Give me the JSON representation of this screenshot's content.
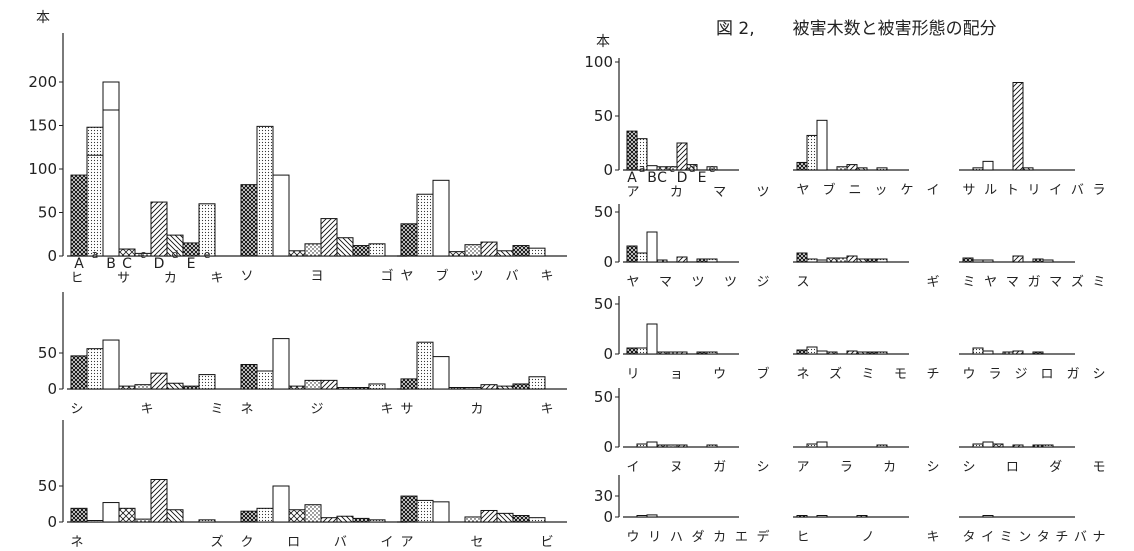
{
  "figure": {
    "number": "図 2,",
    "caption": "被害木数と被害形態の配分"
  },
  "unit_label": "本",
  "category_letters": [
    "A",
    "a",
    "B",
    "C",
    "c",
    "D",
    "d",
    "E",
    "e"
  ],
  "chart_data": [
    {
      "type": "bar",
      "title": "ヒ サ カ キ",
      "title_chars": [
        "ヒ",
        "サ",
        "カ",
        "キ"
      ],
      "categories": [
        "A",
        "a",
        "B",
        "C",
        "c",
        "D",
        "d",
        "E",
        "e"
      ],
      "values": [
        93,
        148,
        200,
        8,
        3,
        62,
        24,
        15,
        60
      ],
      "truncated": [
        false,
        true,
        true,
        false,
        false,
        false,
        false,
        false,
        false
      ],
      "ylim": [
        0,
        200
      ],
      "yticks": [
        0,
        50,
        100,
        150,
        200
      ],
      "grid": false
    },
    {
      "type": "bar",
      "title": "ソ ヨ ゴ",
      "title_chars": [
        "ソ",
        "ヨ",
        "ゴ"
      ],
      "categories": [
        "A",
        "a",
        "B",
        "C",
        "c",
        "D",
        "d",
        "E",
        "e"
      ],
      "values": [
        82,
        149,
        93,
        6,
        14,
        43,
        21,
        12,
        14
      ],
      "ylim": [
        0,
        200
      ],
      "grid": false
    },
    {
      "type": "bar",
      "title": "ヤ ブ ツ バ キ",
      "title_chars": [
        "ヤ",
        "ブ",
        "ツ",
        "バ",
        "キ"
      ],
      "categories": [
        "A",
        "a",
        "B",
        "C",
        "c",
        "D",
        "d",
        "E",
        "e"
      ],
      "values": [
        37,
        71,
        87,
        5,
        13,
        16,
        6,
        12,
        9
      ],
      "ylim": [
        0,
        200
      ],
      "grid": false
    },
    {
      "type": "bar",
      "title": "シ キ ミ",
      "title_chars": [
        "シ",
        "キ",
        "ミ"
      ],
      "categories": [
        "A",
        "a",
        "B",
        "C",
        "c",
        "D",
        "d",
        "E",
        "e"
      ],
      "values": [
        46,
        56,
        68,
        4,
        6,
        22,
        8,
        4,
        20
      ],
      "ylim": [
        0,
        75
      ],
      "yticks": [
        0,
        50
      ],
      "grid": false
    },
    {
      "type": "bar",
      "title": "ネ ジ キ",
      "title_chars": [
        "ネ",
        "ジ",
        "キ"
      ],
      "categories": [
        "A",
        "a",
        "B",
        "C",
        "c",
        "D",
        "d",
        "E",
        "e"
      ],
      "values": [
        34,
        25,
        70,
        4,
        12,
        12,
        2,
        2,
        7
      ],
      "ylim": [
        0,
        75
      ],
      "grid": false
    },
    {
      "type": "bar",
      "title": "サ カ キ",
      "title_chars": [
        "サ",
        "カ",
        "キ"
      ],
      "categories": [
        "A",
        "a",
        "B",
        "C",
        "c",
        "D",
        "d",
        "E",
        "e"
      ],
      "values": [
        14,
        65,
        45,
        2,
        2,
        6,
        4,
        7,
        17
      ],
      "ylim": [
        0,
        75
      ],
      "grid": false
    },
    {
      "type": "bar",
      "title": "ネ ズ",
      "title_chars": [
        "ネ",
        "",
        "",
        "ズ"
      ],
      "categories": [
        "A",
        "a",
        "B",
        "C",
        "c",
        "D",
        "d",
        "E",
        "e"
      ],
      "values": [
        19,
        2,
        27,
        19,
        4,
        59,
        17,
        0,
        3
      ],
      "ylim": [
        0,
        75
      ],
      "yticks": [
        0,
        50
      ],
      "grid": false
    },
    {
      "type": "bar",
      "title": "ク ロ バ イ",
      "title_chars": [
        "ク",
        "ロ",
        "バ",
        "イ"
      ],
      "categories": [
        "A",
        "a",
        "B",
        "C",
        "c",
        "D",
        "d",
        "E",
        "e"
      ],
      "values": [
        15,
        19,
        50,
        17,
        24,
        6,
        8,
        5,
        3
      ],
      "ylim": [
        0,
        75
      ],
      "grid": false
    },
    {
      "type": "bar",
      "title": "ア セ ビ",
      "title_chars": [
        "ア",
        "セ",
        "ビ"
      ],
      "categories": [
        "A",
        "a",
        "B",
        "C",
        "c",
        "D",
        "d",
        "E",
        "e"
      ],
      "values": [
        36,
        30,
        28,
        0,
        7,
        16,
        12,
        9,
        6
      ],
      "ylim": [
        0,
        75
      ],
      "grid": false
    },
    {
      "type": "bar",
      "title": "ア カ マ ツ",
      "title_chars": [
        "ア",
        "カ",
        "マ",
        "ツ"
      ],
      "categories": [
        "A",
        "a",
        "B",
        "C",
        "c",
        "D",
        "d",
        "E",
        "e"
      ],
      "values": [
        36,
        29,
        4,
        3,
        3,
        25,
        5,
        0,
        3
      ],
      "ylim": [
        0,
        100
      ],
      "yticks": [
        0,
        50,
        100
      ],
      "grid": false
    },
    {
      "type": "bar",
      "title": "ヤ ブ ニ ッ ケ イ",
      "title_chars": [
        "ヤ",
        "ブ",
        "ニ",
        "ッ",
        "ケ",
        "イ"
      ],
      "categories": [
        "A",
        "a",
        "B",
        "C",
        "c",
        "D",
        "d",
        "E",
        "e"
      ],
      "values": [
        7,
        32,
        46,
        0,
        3,
        5,
        2,
        0,
        2
      ],
      "ylim": [
        0,
        100
      ],
      "grid": false
    },
    {
      "type": "bar",
      "title": "サ ル ト リ イ バ ラ",
      "title_chars": [
        "サ",
        "ル",
        "ト",
        "リ",
        "イ",
        "バ",
        "ラ"
      ],
      "categories": [
        "A",
        "a",
        "B",
        "C",
        "c",
        "D",
        "d",
        "E",
        "e"
      ],
      "values": [
        0,
        2,
        8,
        0,
        0,
        81,
        2,
        0,
        0
      ],
      "ylim": [
        0,
        100
      ],
      "grid": false
    },
    {
      "type": "bar",
      "title": "ヤ マ ツ ツ ジ",
      "title_chars": [
        "ヤ",
        "マ",
        "ツ",
        "ツ",
        "ジ"
      ],
      "categories": [
        "A",
        "a",
        "B",
        "C",
        "c",
        "D",
        "d",
        "E",
        "e"
      ],
      "values": [
        16,
        9,
        30,
        2,
        0,
        5,
        0,
        3,
        3
      ],
      "ylim": [
        0,
        50
      ],
      "yticks": [
        0,
        50
      ],
      "grid": false
    },
    {
      "type": "bar",
      "title": "ス ギ",
      "title_chars": [
        "ス",
        "",
        "",
        "ギ"
      ],
      "categories": [
        "A",
        "a",
        "B",
        "C",
        "c",
        "D",
        "d",
        "E",
        "e"
      ],
      "values": [
        9,
        3,
        2,
        4,
        4,
        6,
        3,
        3,
        3
      ],
      "ylim": [
        0,
        50
      ],
      "grid": false
    },
    {
      "type": "bar",
      "title": "ミ ヤ マ ガ マ ズ ミ",
      "title_chars": [
        "ミ",
        "ヤ",
        "マ",
        "ガ",
        "マ",
        "ズ",
        "ミ"
      ],
      "categories": [
        "A",
        "a",
        "B",
        "C",
        "c",
        "D",
        "d",
        "E",
        "e"
      ],
      "values": [
        4,
        2,
        2,
        0,
        0,
        6,
        0,
        3,
        2
      ],
      "ylim": [
        0,
        50
      ],
      "grid": false
    },
    {
      "type": "bar",
      "title": "リ ョ ウ ブ",
      "title_chars": [
        "リ",
        "ョ",
        "ウ",
        "ブ"
      ],
      "categories": [
        "A",
        "a",
        "B",
        "C",
        "c",
        "D",
        "d",
        "E",
        "e"
      ],
      "values": [
        6,
        6,
        30,
        2,
        2,
        2,
        0,
        2,
        2
      ],
      "ylim": [
        0,
        50
      ],
      "yticks": [
        0,
        50
      ],
      "grid": false
    },
    {
      "type": "bar",
      "title": "ネ ズ ミ モ チ",
      "title_chars": [
        "ネ",
        "ズ",
        "ミ",
        "モ",
        "チ"
      ],
      "categories": [
        "A",
        "a",
        "B",
        "C",
        "c",
        "D",
        "d",
        "E",
        "e"
      ],
      "values": [
        4,
        7,
        3,
        2,
        0,
        3,
        2,
        2,
        2
      ],
      "ylim": [
        0,
        50
      ],
      "grid": false
    },
    {
      "type": "bar",
      "title": "ウ ラ ジ ロ ガ シ",
      "title_chars": [
        "ウ",
        "ラ",
        "ジ",
        "ロ",
        "ガ",
        "シ"
      ],
      "categories": [
        "A",
        "a",
        "B",
        "C",
        "c",
        "D",
        "d",
        "E",
        "e"
      ],
      "values": [
        0,
        6,
        3,
        0,
        2,
        3,
        0,
        2,
        0
      ],
      "ylim": [
        0,
        50
      ],
      "grid": false
    },
    {
      "type": "bar",
      "title": "イ ヌ ガ シ",
      "title_chars": [
        "イ",
        "ヌ",
        "ガ",
        "シ"
      ],
      "categories": [
        "A",
        "a",
        "B",
        "C",
        "c",
        "D",
        "d",
        "E",
        "e"
      ],
      "values": [
        0,
        3,
        5,
        2,
        2,
        2,
        0,
        0,
        2
      ],
      "ylim": [
        0,
        50
      ],
      "yticks": [
        0,
        50
      ],
      "grid": false
    },
    {
      "type": "bar",
      "title": "ア ラ カ シ",
      "title_chars": [
        "ア",
        "ラ",
        "カ",
        "シ"
      ],
      "categories": [
        "A",
        "a",
        "B",
        "C",
        "c",
        "D",
        "d",
        "E",
        "e"
      ],
      "values": [
        0,
        3,
        5,
        0,
        0,
        0,
        0,
        0,
        2
      ],
      "ylim": [
        0,
        50
      ],
      "grid": false
    },
    {
      "type": "bar",
      "title": "シ ロ ダ モ",
      "title_chars": [
        "シ",
        "ロ",
        "ダ",
        "モ"
      ],
      "categories": [
        "A",
        "a",
        "B",
        "C",
        "c",
        "D",
        "d",
        "E",
        "e"
      ],
      "values": [
        0,
        3,
        5,
        3,
        0,
        2,
        0,
        2,
        2
      ],
      "ylim": [
        0,
        50
      ],
      "grid": false
    },
    {
      "type": "bar",
      "title": "ウ リ ハ ダ カ エ デ",
      "title_chars": [
        "ウ",
        "リ",
        "ハ",
        "ダ",
        "カ",
        "エ",
        "デ"
      ],
      "categories": [
        "A",
        "a",
        "B",
        "C",
        "c",
        "D",
        "d",
        "E",
        "e"
      ],
      "values": [
        0,
        2,
        3,
        0,
        0,
        0,
        0,
        0,
        0
      ],
      "ylim": [
        0,
        30
      ],
      "yticks": [
        0,
        30
      ],
      "grid": false
    },
    {
      "type": "bar",
      "title": "ヒ ノ キ",
      "title_chars": [
        "ヒ",
        "ノ",
        "キ"
      ],
      "categories": [
        "A",
        "a",
        "B",
        "C",
        "c",
        "D",
        "d",
        "E",
        "e"
      ],
      "values": [
        2,
        0,
        2,
        0,
        0,
        0,
        1,
        0,
        0
      ],
      "ylim": [
        0,
        30
      ],
      "grid": false
    },
    {
      "type": "bar",
      "title": "タ イ ミ ン タ チ バ ナ",
      "title_chars": [
        "タ",
        "イ",
        "ミ",
        "ン",
        "タ",
        "チ",
        "バ",
        "ナ"
      ],
      "categories": [
        "A",
        "a",
        "B",
        "C",
        "c",
        "D",
        "d",
        "E",
        "e"
      ],
      "values": [
        0,
        0,
        2,
        0,
        0,
        0,
        0,
        0,
        0
      ],
      "ylim": [
        0,
        30
      ],
      "grid": false
    }
  ]
}
